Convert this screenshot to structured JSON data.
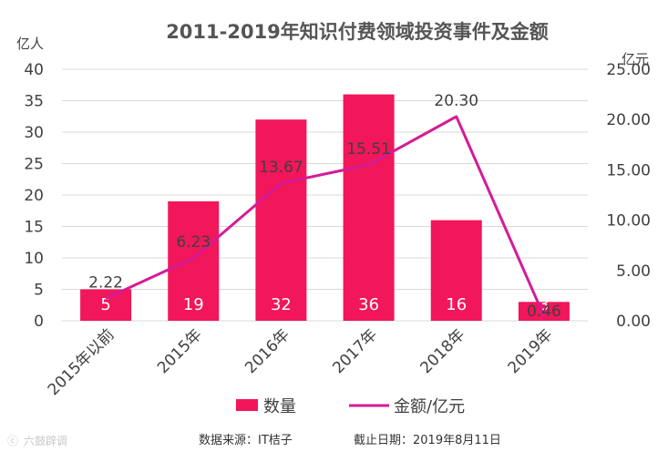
{
  "chart_data": {
    "type": "bar",
    "title": "2011-2019年知识付费领域投资事件及金额",
    "categories": [
      "2015年以前",
      "2015年",
      "2016年",
      "2017年",
      "2018年",
      "2019年"
    ],
    "series": [
      {
        "name": "数量",
        "type": "bar",
        "axis": "left",
        "color": "#f2165a",
        "values": [
          5,
          19,
          32,
          36,
          16,
          3
        ]
      },
      {
        "name": "金额/亿元",
        "type": "line",
        "axis": "right",
        "color": "#d41b97",
        "values": [
          2.22,
          6.23,
          13.67,
          15.51,
          20.3,
          0.46
        ]
      }
    ],
    "y_left": {
      "unit": "亿人",
      "min": 0,
      "max": 40,
      "step": 5,
      "ticks": [
        "0",
        "5",
        "10",
        "15",
        "20",
        "25",
        "30",
        "35",
        "40"
      ]
    },
    "y_right": {
      "unit": "亿元",
      "min": 0,
      "max": 25,
      "step": 5,
      "ticks": [
        "0.00",
        "5.00",
        "10.00",
        "15.00",
        "20.00",
        "25.00"
      ]
    },
    "bar_labels": [
      "5",
      "19",
      "32",
      "36",
      "16",
      "3"
    ],
    "line_labels": [
      "2.22",
      "6.23",
      "13.67",
      "15.51",
      "20.30",
      "0.46"
    ],
    "grid": true,
    "legend_position": "bottom"
  },
  "footer": {
    "source": "数据来源：IT桔子",
    "date": "截止日期：2019年8月11日"
  },
  "watermark": "六鼓辟调"
}
